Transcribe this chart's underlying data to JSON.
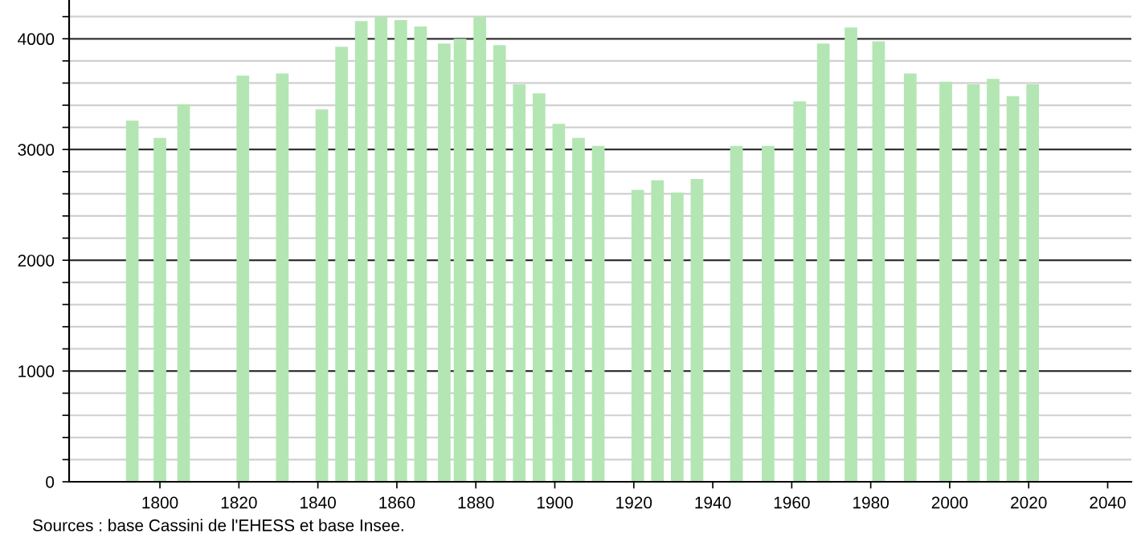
{
  "chart_data": {
    "type": "bar",
    "x": [
      1793,
      1800,
      1806,
      1821,
      1831,
      1841,
      1846,
      1851,
      1856,
      1861,
      1866,
      1872,
      1876,
      1881,
      1886,
      1891,
      1896,
      1901,
      1906,
      1911,
      1921,
      1926,
      1931,
      1936,
      1946,
      1954,
      1962,
      1968,
      1975,
      1982,
      1990,
      1999,
      2006,
      2011,
      2016,
      2021
    ],
    "values": [
      3260,
      3105,
      3410,
      3666,
      3686,
      3362,
      3927,
      4160,
      4198,
      4169,
      4111,
      3956,
      4000,
      4198,
      3942,
      3589,
      3507,
      3231,
      3105,
      3033,
      2636,
      2723,
      2612,
      2733,
      3033,
      3033,
      3434,
      3956,
      4101,
      3976,
      3686,
      3613,
      3589,
      3637,
      3482,
      3589
    ],
    "color": "#b3e6b3",
    "xlim": [
      1777,
      2046
    ],
    "xticks": [
      1800,
      1820,
      1840,
      1860,
      1880,
      1900,
      1920,
      1940,
      1960,
      1980,
      2000,
      2020,
      2040
    ],
    "ylim": [
      0,
      4350
    ],
    "yticks": [
      0,
      {
        "value": 200,
        "label": null
      },
      {
        "value": 400,
        "label": null
      },
      {
        "value": 600,
        "label": null
      },
      {
        "value": 800,
        "label": null
      },
      1000,
      {
        "value": 1200,
        "label": null
      },
      {
        "value": 1400,
        "label": null
      },
      {
        "value": 1600,
        "label": null
      },
      {
        "value": 1800,
        "label": null
      },
      2000,
      {
        "value": 2200,
        "label": null
      },
      {
        "value": 2400,
        "label": null
      },
      {
        "value": 2600,
        "label": null
      },
      {
        "value": 2800,
        "label": null
      },
      3000,
      {
        "value": 3200,
        "label": null
      },
      {
        "value": 3400,
        "label": null
      },
      {
        "value": 3600,
        "label": null
      },
      {
        "value": 3800,
        "label": null
      },
      4000,
      {
        "value": 4200,
        "label": null
      }
    ],
    "grid": "y",
    "annotations": [
      "Sources : base Cassini de l'EHESS et base Insee."
    ]
  }
}
